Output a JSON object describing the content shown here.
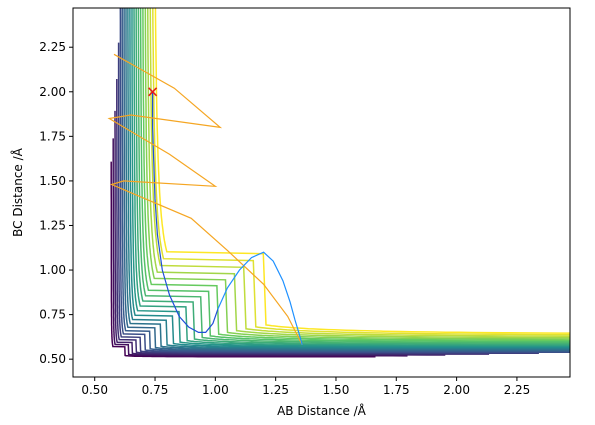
{
  "chart_data": {
    "type": "line",
    "title": "",
    "xlabel": "AB Distance /Å",
    "ylabel": "BC Distance /Å",
    "xlim": [
      0.41,
      2.47
    ],
    "ylim": [
      0.4,
      2.47
    ],
    "xticks": [
      0.5,
      0.75,
      1.0,
      1.25,
      1.5,
      1.75,
      2.0,
      2.25
    ],
    "xtick_labels": [
      "0.50",
      "0.75",
      "1.00",
      "1.25",
      "1.50",
      "1.75",
      "2.00",
      "2.25"
    ],
    "yticks": [
      0.5,
      0.75,
      1.0,
      1.25,
      1.5,
      1.75,
      2.0,
      2.25
    ],
    "ytick_labels": [
      "0.50",
      "0.75",
      "1.00",
      "1.25",
      "1.50",
      "1.75",
      "2.00",
      "2.25"
    ],
    "grid": false,
    "colors": {
      "contour_low": "#440154",
      "contour_high": "#fde725",
      "start_marker": "#e41a1c",
      "trajectory_early": "#d00000",
      "trajectory_mid": "#f5a623",
      "trajectory_late": "#1f4fd8"
    },
    "contours": {
      "count": 22,
      "levels": [
        0.04,
        0.09,
        0.15,
        0.22,
        0.3,
        0.39,
        0.49,
        0.6,
        0.72,
        0.85,
        0.99,
        1.14,
        1.3,
        1.47,
        1.65,
        1.84,
        2.04,
        2.25,
        2.47,
        2.7,
        2.94,
        3.19
      ]
    },
    "start_point": {
      "x": 0.74,
      "y": 2.0,
      "marker": "x"
    },
    "series": [
      {
        "type": "line",
        "style": "trajectory",
        "x": [
          0.74,
          0.74,
          0.745,
          0.75,
          0.76,
          0.78,
          0.81,
          0.85,
          0.89,
          0.93,
          0.96,
          0.99,
          1.01
        ],
        "y": [
          2.0,
          1.8,
          1.6,
          1.4,
          1.2,
          1.0,
          0.86,
          0.74,
          0.68,
          0.65,
          0.65,
          0.7,
          0.78
        ]
      },
      {
        "type": "line",
        "style": "trajectory",
        "x": [
          0.58,
          0.83,
          1.02,
          0.65,
          0.56,
          0.81,
          1.0,
          0.62,
          0.57,
          0.9,
          1.05,
          1.2,
          1.3,
          1.36
        ],
        "y": [
          2.21,
          2.02,
          1.8,
          1.87,
          1.85,
          1.65,
          1.47,
          1.5,
          1.48,
          1.29,
          1.11,
          0.92,
          0.74,
          0.58
        ]
      },
      {
        "type": "line",
        "style": "trajectory",
        "x": [
          1.01,
          1.05,
          1.1,
          1.15,
          1.2,
          1.24,
          1.28,
          1.31,
          1.33,
          1.35,
          1.36
        ],
        "y": [
          0.78,
          0.9,
          1.0,
          1.07,
          1.1,
          1.05,
          0.94,
          0.82,
          0.72,
          0.63,
          0.58
        ]
      }
    ]
  }
}
